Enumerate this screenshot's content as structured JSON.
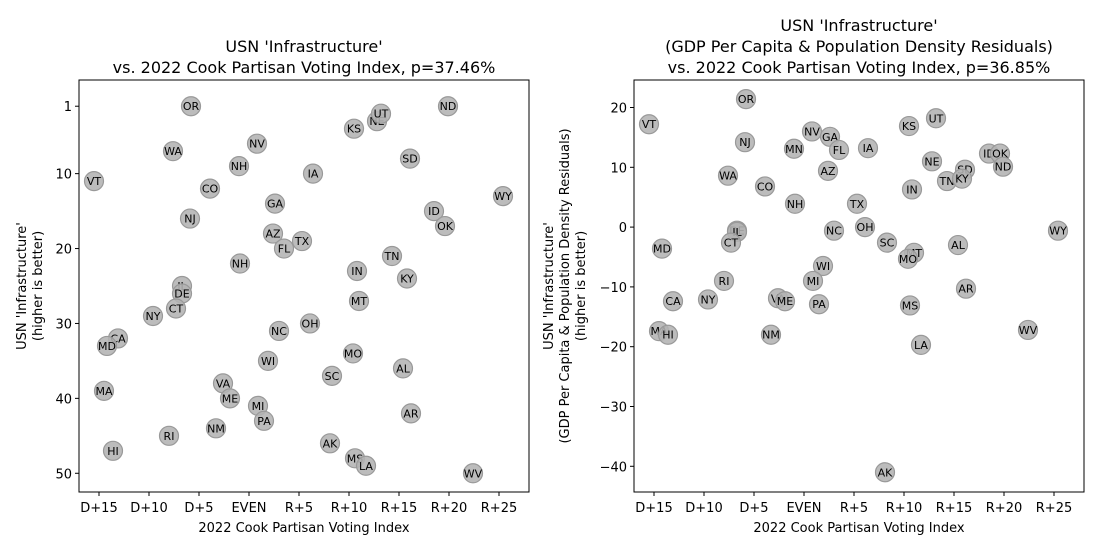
{
  "chart_data": [
    {
      "type": "scatter",
      "title": [
        "USN 'Infrastructure'",
        "vs. 2022 Cook Partisan Voting Index, p=37.46%"
      ],
      "xlabel": "2022 Cook Partisan Voting Index",
      "ylabel": [
        "USN 'Infrastructure'",
        "(higher is better)"
      ],
      "xlim": [
        -17,
        28
      ],
      "ylim": [
        52.5,
        -2.5
      ],
      "y_inverted": true,
      "x_ticks": [
        -15,
        -10,
        -5,
        0,
        5,
        10,
        15,
        20,
        25
      ],
      "x_tick_labels": [
        "D+15",
        "D+10",
        "D+5",
        "EVEN",
        "R+5",
        "R+10",
        "R+15",
        "R+20",
        "R+25"
      ],
      "y_ticks": [
        1,
        10,
        20,
        30,
        40,
        50
      ],
      "y_tick_labels": [
        "1",
        "10",
        "20",
        "30",
        "40",
        "50"
      ],
      "grid": false,
      "marker_color": "#b3b3b3",
      "points": [
        {
          "label": "VT",
          "x": -15.5,
          "y": 11
        },
        {
          "label": "OR",
          "x": -5.8,
          "y": 1
        },
        {
          "label": "WA",
          "x": -7.6,
          "y": 7
        },
        {
          "label": "NV",
          "x": 0.8,
          "y": 6
        },
        {
          "label": "CO",
          "x": -3.9,
          "y": 12
        },
        {
          "label": "NJ",
          "x": -5.9,
          "y": 16
        },
        {
          "label": "NH",
          "x": -1.0,
          "y": 9
        },
        {
          "label": "IA",
          "x": 6.4,
          "y": 10
        },
        {
          "label": "KS",
          "x": 10.5,
          "y": 4
        },
        {
          "label": "NE",
          "x": 12.8,
          "y": 3
        },
        {
          "label": "UT",
          "x": 13.2,
          "y": 2
        },
        {
          "label": "SD",
          "x": 16.1,
          "y": 8
        },
        {
          "label": "ND",
          "x": 19.9,
          "y": 1
        },
        {
          "label": "WY",
          "x": 25.4,
          "y": 13
        },
        {
          "label": "ID",
          "x": 18.5,
          "y": 15
        },
        {
          "label": "OK",
          "x": 19.6,
          "y": 17
        },
        {
          "label": "GA",
          "x": 2.6,
          "y": 14
        },
        {
          "label": "AZ",
          "x": 2.4,
          "y": 18
        },
        {
          "label": "FL",
          "x": 3.5,
          "y": 20
        },
        {
          "label": "TX",
          "x": 5.3,
          "y": 19
        },
        {
          "label": "NH",
          "x": -0.9,
          "y": 22
        },
        {
          "label": "IN",
          "x": 10.8,
          "y": 23
        },
        {
          "label": "TN",
          "x": 14.3,
          "y": 21
        },
        {
          "label": "KY",
          "x": 15.8,
          "y": 24
        },
        {
          "label": "IL",
          "x": -6.7,
          "y": 25
        },
        {
          "label": "DE",
          "x": -6.7,
          "y": 26
        },
        {
          "label": "CT",
          "x": -7.3,
          "y": 28
        },
        {
          "label": "NY",
          "x": -9.6,
          "y": 29
        },
        {
          "label": "MT",
          "x": 11.0,
          "y": 27
        },
        {
          "label": "CA",
          "x": -13.1,
          "y": 32
        },
        {
          "label": "MD",
          "x": -14.2,
          "y": 33
        },
        {
          "label": "NC",
          "x": 3.0,
          "y": 31
        },
        {
          "label": "OH",
          "x": 6.1,
          "y": 30
        },
        {
          "label": "MO",
          "x": 10.4,
          "y": 34
        },
        {
          "label": "WI",
          "x": 1.9,
          "y": 35
        },
        {
          "label": "SC",
          "x": 8.3,
          "y": 37
        },
        {
          "label": "AL",
          "x": 15.4,
          "y": 36
        },
        {
          "label": "MA",
          "x": -14.5,
          "y": 39
        },
        {
          "label": "VA",
          "x": -2.6,
          "y": 38
        },
        {
          "label": "ME",
          "x": -1.9,
          "y": 40
        },
        {
          "label": "MI",
          "x": 0.9,
          "y": 41
        },
        {
          "label": "PA",
          "x": 1.5,
          "y": 43
        },
        {
          "label": "NM",
          "x": -3.3,
          "y": 44
        },
        {
          "label": "RI",
          "x": -8.0,
          "y": 45
        },
        {
          "label": "AR",
          "x": 16.2,
          "y": 42
        },
        {
          "label": "HI",
          "x": -13.6,
          "y": 47
        },
        {
          "label": "AK",
          "x": 8.1,
          "y": 46
        },
        {
          "label": "MS",
          "x": 10.6,
          "y": 48
        },
        {
          "label": "LA",
          "x": 11.7,
          "y": 49
        },
        {
          "label": "WV",
          "x": 22.4,
          "y": 50
        }
      ]
    },
    {
      "type": "scatter",
      "title": [
        "USN 'Infrastructure'",
        "(GDP Per Capita & Population Density Residuals)",
        "vs. 2022 Cook Partisan Voting Index, p=36.85%"
      ],
      "xlabel": "2022 Cook Partisan Voting Index",
      "ylabel": [
        "USN 'Infrastructure'",
        "(GDP Per Capita & Population Density Residuals)",
        "(higher is better)"
      ],
      "xlim": [
        -17,
        28
      ],
      "ylim": [
        -44.3,
        24.6
      ],
      "y_inverted": false,
      "x_ticks": [
        -15,
        -10,
        -5,
        0,
        5,
        10,
        15,
        20,
        25
      ],
      "x_tick_labels": [
        "D+15",
        "D+10",
        "D+5",
        "EVEN",
        "R+5",
        "R+10",
        "R+15",
        "R+20",
        "R+25"
      ],
      "y_ticks": [
        20,
        10,
        0,
        -10,
        -20,
        -30,
        -40
      ],
      "y_tick_labels": [
        "20",
        "10",
        "0",
        "−10",
        "−20",
        "−30",
        "−40"
      ],
      "grid": false,
      "marker_color": "#b3b3b3",
      "points": [
        {
          "label": "VT",
          "x": -15.5,
          "y": 17.2
        },
        {
          "label": "OR",
          "x": -5.8,
          "y": 21.4
        },
        {
          "label": "NJ",
          "x": -5.9,
          "y": 14.2
        },
        {
          "label": "WA",
          "x": -7.6,
          "y": 8.6
        },
        {
          "label": "CO",
          "x": -3.9,
          "y": 6.8
        },
        {
          "label": "NV",
          "x": 0.8,
          "y": 16.0
        },
        {
          "label": "MN",
          "x": -1.0,
          "y": 13.1
        },
        {
          "label": "GA",
          "x": 2.6,
          "y": 15.1
        },
        {
          "label": "FL",
          "x": 3.5,
          "y": 12.9
        },
        {
          "label": "IA",
          "x": 6.4,
          "y": 13.2
        },
        {
          "label": "KS",
          "x": 10.5,
          "y": 16.9
        },
        {
          "label": "UT",
          "x": 13.2,
          "y": 18.2
        },
        {
          "label": "NE",
          "x": 12.8,
          "y": 11.0
        },
        {
          "label": "AZ",
          "x": 2.4,
          "y": 9.4
        },
        {
          "label": "ID",
          "x": 18.5,
          "y": 12.3
        },
        {
          "label": "OK",
          "x": 19.6,
          "y": 12.3
        },
        {
          "label": "ND",
          "x": 19.9,
          "y": 10.1
        },
        {
          "label": "SD",
          "x": 16.1,
          "y": 9.6
        },
        {
          "label": "TN",
          "x": 14.3,
          "y": 7.7
        },
        {
          "label": "KY",
          "x": 15.8,
          "y": 8.1
        },
        {
          "label": "IN",
          "x": 10.8,
          "y": 6.3
        },
        {
          "label": "NH",
          "x": -0.9,
          "y": 3.9
        },
        {
          "label": "TX",
          "x": 5.3,
          "y": 3.9
        },
        {
          "label": "OH",
          "x": 6.1,
          "y": 0.0
        },
        {
          "label": "NC",
          "x": 3.0,
          "y": -0.6
        },
        {
          "label": "WY",
          "x": 25.4,
          "y": -0.6
        },
        {
          "label": "DE",
          "x": -6.7,
          "y": -0.6
        },
        {
          "label": "IL",
          "x": -6.7,
          "y": -0.8
        },
        {
          "label": "CT",
          "x": -7.3,
          "y": -2.6
        },
        {
          "label": "MD",
          "x": -14.2,
          "y": -3.6
        },
        {
          "label": "SC",
          "x": 8.3,
          "y": -2.6
        },
        {
          "label": "AL",
          "x": 15.4,
          "y": -3.0
        },
        {
          "label": "MT",
          "x": 11.0,
          "y": -4.3
        },
        {
          "label": "MO",
          "x": 10.4,
          "y": -5.3
        },
        {
          "label": "WI",
          "x": 1.9,
          "y": -6.5
        },
        {
          "label": "RI",
          "x": -8.0,
          "y": -9.0
        },
        {
          "label": "MI",
          "x": 0.9,
          "y": -9.0
        },
        {
          "label": "AR",
          "x": 16.2,
          "y": -10.3
        },
        {
          "label": "NY",
          "x": -9.6,
          "y": -12.1
        },
        {
          "label": "CA",
          "x": -13.1,
          "y": -12.4
        },
        {
          "label": "VA",
          "x": -2.6,
          "y": -11.9
        },
        {
          "label": "ME",
          "x": -1.9,
          "y": -12.4
        },
        {
          "label": "PA",
          "x": 1.5,
          "y": -12.9
        },
        {
          "label": "MS",
          "x": 10.6,
          "y": -13.1
        },
        {
          "label": "MA",
          "x": -14.5,
          "y": -17.4
        },
        {
          "label": "HI",
          "x": -13.6,
          "y": -18.0
        },
        {
          "label": "NM",
          "x": -3.3,
          "y": -18.0
        },
        {
          "label": "WV",
          "x": 22.4,
          "y": -17.2
        },
        {
          "label": "LA",
          "x": 11.7,
          "y": -19.7
        },
        {
          "label": "AK",
          "x": 8.1,
          "y": -41.0
        }
      ]
    }
  ]
}
